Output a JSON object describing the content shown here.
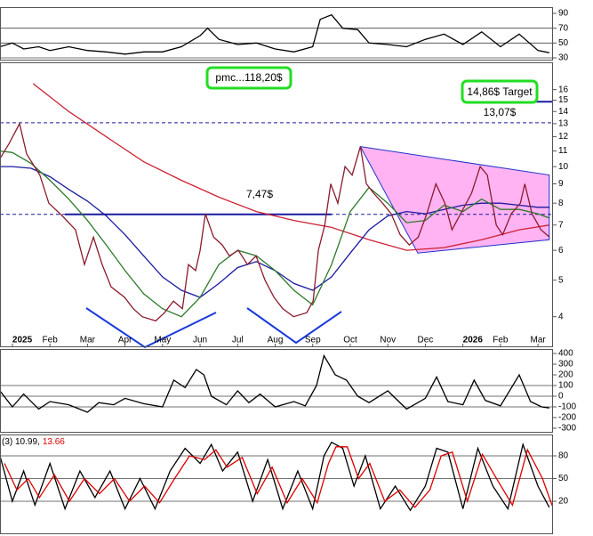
{
  "chart_data": [
    {
      "type": "line",
      "panel": "rsi",
      "xlim": [
        -0.33,
        14.4
      ],
      "ylim": [
        26.4,
        98.4
      ],
      "yticks": [
        90,
        70,
        50,
        30
      ],
      "hlines": [
        70,
        50,
        30
      ],
      "series": [
        {
          "color": "#000000",
          "x": [
            -0.33,
            0,
            0.3,
            0.7,
            1,
            1.5,
            2,
            2.5,
            3,
            3.5,
            4,
            4.5,
            5,
            5.2,
            5.5,
            6,
            6.5,
            7,
            7.5,
            8,
            8.2,
            8.5,
            8.8,
            9.2,
            9.5,
            10,
            10.5,
            11,
            11.5,
            12,
            12.5,
            13,
            13.5,
            14,
            14.3
          ],
          "values": [
            45,
            50,
            42,
            45,
            40,
            45,
            40,
            38,
            35,
            38,
            38,
            45,
            60,
            70,
            55,
            48,
            50,
            42,
            38,
            45,
            82,
            88,
            70,
            68,
            50,
            48,
            45,
            55,
            62,
            48,
            65,
            45,
            62,
            40,
            37
          ]
        }
      ]
    },
    {
      "type": "line",
      "panel": "price",
      "log": true,
      "xlim": [
        -0.33,
        14.4
      ],
      "xticks": [
        {
          "value": 0,
          "label": "2025"
        },
        {
          "value": 1,
          "label": "Feb"
        },
        {
          "value": 2,
          "label": "Mar"
        },
        {
          "value": 3,
          "label": "Apr"
        },
        {
          "value": 4,
          "label": "May"
        },
        {
          "value": 5,
          "label": "Jun"
        },
        {
          "value": 6,
          "label": "Jul"
        },
        {
          "value": 7,
          "label": "Aug"
        },
        {
          "value": 8,
          "label": "Sep"
        },
        {
          "value": 9,
          "label": "Oct"
        },
        {
          "value": 10,
          "label": "Nov"
        },
        {
          "value": 11,
          "label": "Dec"
        },
        {
          "value": 12,
          "label": "2026"
        },
        {
          "value": 13,
          "label": "Feb"
        },
        {
          "value": 14,
          "label": "Mar"
        }
      ],
      "ylim": [
        3.32,
        18.9
      ],
      "yticks": [
        16,
        15,
        14,
        13,
        12,
        11,
        10,
        9,
        8,
        7,
        6,
        5,
        4
      ],
      "annotations": [
        {
          "text": "pmc...118,20$"
        },
        {
          "text": "14,86$ Target",
          "value": 14.86
        },
        {
          "text": "13,07$",
          "value": 13.07
        },
        {
          "text": "7,47$",
          "value": 7.47
        }
      ],
      "channel": {
        "color": "#ff99ee",
        "x": [
          9.27,
          14.3,
          14.3,
          10.8
        ],
        "values": [
          11.3,
          9.5,
          6.4,
          5.9
        ]
      },
      "series": [
        {
          "color": "#cc2233",
          "x": [
            0.55,
            1.5,
            2.5,
            3.5,
            4.5,
            5.5,
            6.5,
            7.5,
            8.5,
            9.5,
            10.5,
            11.5,
            12.5,
            13.5,
            14.3
          ],
          "values": [
            16.6,
            14,
            12,
            10.3,
            9.2,
            8.3,
            7.6,
            7.2,
            6.9,
            6.4,
            6.0,
            6.1,
            6.4,
            6.8,
            7.0
          ]
        },
        {
          "color": "#1a1aa0",
          "x": [
            -0.33,
            0,
            0.5,
            1,
            1.5,
            2,
            2.5,
            3,
            3.5,
            4,
            4.5,
            5,
            5.5,
            6,
            6.5,
            7,
            7.5,
            8,
            8.5,
            9,
            9.5,
            10,
            10.5,
            11,
            11.5,
            12,
            12.5,
            13,
            13.5,
            14,
            14.31
          ],
          "values": [
            10,
            10,
            9.9,
            9.4,
            8.7,
            8.1,
            7.4,
            6.6,
            5.8,
            5.1,
            4.7,
            4.5,
            4.9,
            5.4,
            5.6,
            5.3,
            4.9,
            4.7,
            5.1,
            5.9,
            6.8,
            7.4,
            7.6,
            7.5,
            7.7,
            7.9,
            8.0,
            8.0,
            7.9,
            7.8,
            7.8
          ]
        },
        {
          "color": "#2e7a2a",
          "x": [
            -0.33,
            0,
            0.5,
            1,
            1.5,
            2,
            2.5,
            3,
            3.5,
            4,
            4.5,
            5,
            5.5,
            6,
            6.5,
            7,
            7.5,
            8,
            8.5,
            9,
            9.5,
            10,
            10.5,
            11,
            11.5,
            12,
            12.5,
            13,
            13.5,
            14,
            14.31
          ],
          "values": [
            11,
            10.9,
            10.2,
            9.2,
            8.2,
            7.2,
            6.2,
            5.3,
            4.6,
            4.2,
            4.0,
            4.5,
            5.5,
            6.0,
            5.8,
            5.3,
            4.7,
            4.3,
            5.5,
            7.6,
            8.8,
            8.0,
            7.1,
            7.2,
            7.9,
            7.6,
            8.2,
            7.7,
            7.7,
            7.5,
            7.3
          ]
        },
        {
          "color": "#8b1c2c",
          "x": [
            -0.33,
            -0.09,
            0.19,
            0.38,
            0.73,
            0.97,
            1.33,
            1.68,
            1.92,
            2.16,
            2.39,
            2.63,
            2.99,
            3.22,
            3.46,
            3.82,
            4.05,
            4.29,
            4.53,
            4.69,
            4.88,
            5.0,
            5.14,
            5.36,
            5.59,
            5.78,
            6.02,
            6.26,
            6.49,
            6.73,
            6.97,
            7.2,
            7.49,
            7.84,
            8.01,
            8.15,
            8.32,
            8.48,
            8.67,
            8.86,
            9.05,
            9.27,
            9.43,
            9.62,
            9.86,
            10.09,
            10.33,
            10.57,
            10.81,
            11.04,
            11.28,
            11.52,
            11.71,
            11.94,
            12.23,
            12.46,
            12.65,
            12.89,
            13.06,
            13.29,
            13.53,
            13.65,
            13.84,
            14.08,
            14.31
          ],
          "values": [
            10.5,
            11.5,
            13,
            10.8,
            9.5,
            8.0,
            7.4,
            6.8,
            5.5,
            6.5,
            5.5,
            4.8,
            4.5,
            4.2,
            4.0,
            3.9,
            4.1,
            4.4,
            4.2,
            5.5,
            5.3,
            6.0,
            7.5,
            6.5,
            6.2,
            5.8,
            6.0,
            5.5,
            5.8,
            5.0,
            4.5,
            4.2,
            4.0,
            4.1,
            4.4,
            6.0,
            7.0,
            9.0,
            8.0,
            10.0,
            9.5,
            11.3,
            9.0,
            8.5,
            8.0,
            7.5,
            6.6,
            6.2,
            6.5,
            7.5,
            9.0,
            8.0,
            6.8,
            7.5,
            8.5,
            10.0,
            9.5,
            7.0,
            6.6,
            7.5,
            8.0,
            9.0,
            7.5,
            6.8,
            6.5
          ]
        }
      ]
    },
    {
      "type": "line",
      "panel": "cci",
      "xlim": [
        -0.33,
        14.4
      ],
      "ylim": [
        -342,
        442
      ],
      "yticks": [
        400,
        300,
        200,
        100,
        0,
        -100,
        -200,
        -300
      ],
      "hlines": [
        100,
        0,
        -100
      ],
      "series": [
        {
          "color": "#000000",
          "x": [
            -0.33,
            0,
            0.3,
            0.7,
            1,
            1.5,
            2,
            2.3,
            2.7,
            3,
            3.5,
            4,
            4.3,
            4.6,
            4.9,
            5.1,
            5.3,
            5.7,
            6,
            6.3,
            6.6,
            7,
            7.5,
            7.8,
            8.1,
            8.3,
            8.6,
            8.9,
            9.2,
            9.5,
            10,
            10.5,
            11,
            11.3,
            11.6,
            12,
            12.3,
            12.6,
            13,
            13.5,
            13.8,
            14.1,
            14.3
          ],
          "values": [
            50,
            -100,
            20,
            -120,
            -50,
            -80,
            -150,
            -60,
            -80,
            -20,
            -70,
            -100,
            150,
            80,
            250,
            200,
            0,
            -80,
            50,
            -60,
            20,
            -100,
            -50,
            -90,
            100,
            380,
            200,
            150,
            0,
            -60,
            50,
            -120,
            -20,
            180,
            -50,
            -80,
            150,
            -40,
            -90,
            200,
            -50,
            -100,
            -110
          ]
        }
      ]
    },
    {
      "type": "line",
      "panel": "stoch",
      "xlim": [
        -0.33,
        14.4
      ],
      "ylim": [
        -23.5,
        108.2
      ],
      "yticks": [
        80,
        50,
        20
      ],
      "hlines": [
        80,
        50,
        20
      ],
      "label": [
        "(3) 10.99,",
        "13.66"
      ],
      "series": [
        {
          "color": "#000000",
          "x": [
            -0.33,
            0,
            0.3,
            0.6,
            1,
            1.4,
            1.8,
            2.2,
            2.6,
            3,
            3.4,
            3.8,
            4.2,
            4.6,
            5,
            5.3,
            5.6,
            6,
            6.4,
            6.8,
            7.2,
            7.6,
            8,
            8.3,
            8.5,
            8.8,
            9.1,
            9.4,
            9.8,
            10.2,
            10.6,
            11,
            11.3,
            11.6,
            12,
            12.4,
            12.8,
            13.2,
            13.6,
            14,
            14.3
          ],
          "values": [
            80,
            20,
            60,
            15,
            70,
            10,
            60,
            25,
            60,
            10,
            50,
            10,
            60,
            90,
            70,
            95,
            60,
            85,
            20,
            75,
            10,
            60,
            10,
            80,
            98,
            90,
            40,
            80,
            10,
            40,
            8,
            40,
            90,
            85,
            10,
            90,
            40,
            10,
            95,
            40,
            12
          ]
        },
        {
          "color": "#dd0000",
          "x": [
            -0.21,
            0.12,
            0.42,
            0.72,
            1.12,
            1.52,
            1.92,
            2.32,
            2.72,
            3.12,
            3.52,
            3.92,
            4.32,
            4.72,
            5.12,
            5.42,
            5.72,
            6.12,
            6.52,
            6.92,
            7.32,
            7.72,
            8.12,
            8.42,
            8.62,
            8.92,
            9.22,
            9.52,
            9.92,
            10.32,
            10.72,
            11.12,
            11.42,
            11.72,
            12.12,
            12.52,
            12.92,
            13.32,
            13.72,
            14.12,
            14.38
          ],
          "values": [
            70,
            35,
            50,
            25,
            55,
            20,
            50,
            30,
            50,
            20,
            40,
            18,
            50,
            80,
            75,
            88,
            65,
            78,
            30,
            65,
            18,
            50,
            18,
            70,
            92,
            92,
            50,
            70,
            20,
            35,
            12,
            35,
            80,
            85,
            20,
            82,
            48,
            15,
            88,
            50,
            14
          ]
        }
      ]
    }
  ]
}
